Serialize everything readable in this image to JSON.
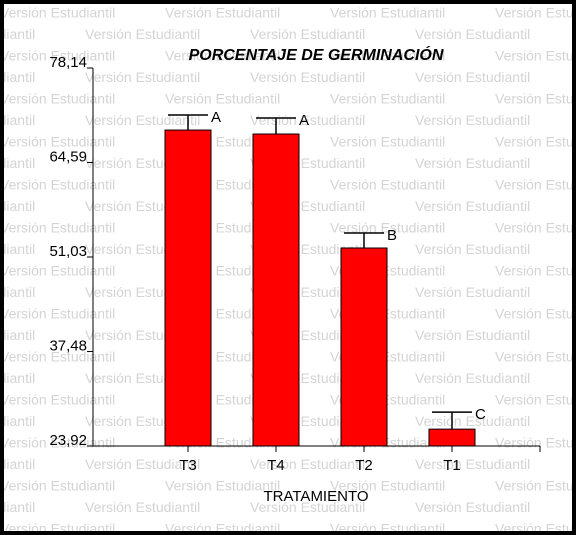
{
  "chart_data": {
    "type": "bar",
    "title": "PORCENTAJE DE GERMINACIÓN",
    "x_label": "TRATAMIENTO",
    "watermark": "Versión Estudiantil",
    "categories": [
      "T3",
      "T4",
      "T2",
      "T1"
    ],
    "values": [
      69.24,
      68.67,
      52.32,
      26.34
    ],
    "errors": [
      2.16,
      2.3,
      2.15,
      2.44
    ],
    "annotations": [
      "A",
      "A",
      "B",
      "C"
    ],
    "color": "#ff0000",
    "ylim": [
      23.92,
      78.14
    ],
    "yticks": [
      {
        "value": 23.92,
        "label": "23,92"
      },
      {
        "value": 37.48,
        "label": "37,48"
      },
      {
        "value": 51.03,
        "label": "51,03"
      },
      {
        "value": 64.59,
        "label": "64,59"
      },
      {
        "value": 78.14,
        "label": "78,14"
      }
    ]
  }
}
